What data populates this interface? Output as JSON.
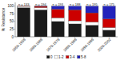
{
  "chart_data": {
    "type": "bar",
    "stacked": true,
    "categories": [
      "1950-1959",
      "1960-1969",
      "1970-1979",
      "1980-1989",
      "1990-1999",
      "2000-2002"
    ],
    "series": [
      {
        "name": "0",
        "color": "#1a1a1a",
        "values": [
          95,
          88,
          50,
          42,
          38,
          22
        ]
      },
      {
        "name": "1-2",
        "color": "#ffffff",
        "values": [
          4,
          7,
          12,
          10,
          10,
          8
        ]
      },
      {
        "name": "3-4",
        "color": "#cc0000",
        "values": [
          1,
          4,
          28,
          36,
          30,
          28
        ]
      },
      {
        "name": "5-8",
        "color": "#2222bb",
        "values": [
          0,
          1,
          10,
          12,
          22,
          42
        ]
      }
    ],
    "annotations": [
      "n = 133",
      "n = 194",
      "n = 193",
      "n = 188",
      "n = 195",
      "n = 175"
    ],
    "y_label": "% Resistance",
    "ylim": [
      0,
      112
    ],
    "yticks": [
      0,
      25,
      50,
      75,
      100
    ],
    "grid": false,
    "legend": "bottom"
  }
}
